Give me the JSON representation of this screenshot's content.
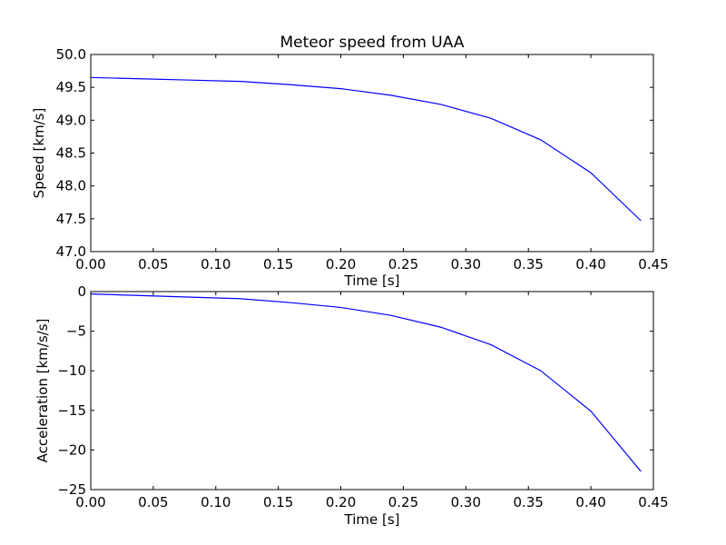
{
  "chart_data": [
    {
      "type": "line",
      "title": "Meteor speed from UAA",
      "xlabel": "Time [s]",
      "ylabel": "Speed [km/s]",
      "xlim": [
        0.0,
        0.45
      ],
      "ylim": [
        47.0,
        50.0
      ],
      "xticks": [
        0.0,
        0.05,
        0.1,
        0.15,
        0.2,
        0.25,
        0.3,
        0.35,
        0.4,
        0.45
      ],
      "xtick_labels": [
        "0.00",
        "0.05",
        "0.10",
        "0.15",
        "0.20",
        "0.25",
        "0.30",
        "0.35",
        "0.40",
        "0.45"
      ],
      "yticks": [
        47.0,
        47.5,
        48.0,
        48.5,
        49.0,
        49.5,
        50.0
      ],
      "ytick_labels": [
        "47.0",
        "47.5",
        "48.0",
        "48.5",
        "49.0",
        "49.5",
        "50.0"
      ],
      "grid": false,
      "color": "#0000ff",
      "series": [
        {
          "x": [
            0.0,
            0.04,
            0.08,
            0.12,
            0.16,
            0.2,
            0.24,
            0.28,
            0.32,
            0.36,
            0.4,
            0.44
          ],
          "y": [
            49.65,
            49.63,
            49.61,
            49.59,
            49.54,
            49.48,
            49.38,
            49.24,
            49.03,
            48.7,
            48.2,
            47.47
          ]
        }
      ]
    },
    {
      "type": "line",
      "title": "",
      "xlabel": "Time [s]",
      "ylabel": "Acceleration [km/s/s]",
      "xlim": [
        0.0,
        0.45
      ],
      "ylim": [
        -25,
        0
      ],
      "xticks": [
        0.0,
        0.05,
        0.1,
        0.15,
        0.2,
        0.25,
        0.3,
        0.35,
        0.4,
        0.45
      ],
      "xtick_labels": [
        "0.00",
        "0.05",
        "0.10",
        "0.15",
        "0.20",
        "0.25",
        "0.30",
        "0.35",
        "0.40",
        "0.45"
      ],
      "yticks": [
        -25,
        -20,
        -15,
        -10,
        -5,
        0
      ],
      "ytick_labels": [
        "−25",
        "−20",
        "−15",
        "−10",
        "−5",
        "0"
      ],
      "grid": false,
      "color": "#0000ff",
      "series": [
        {
          "x": [
            0.0,
            0.04,
            0.08,
            0.12,
            0.16,
            0.2,
            0.24,
            0.28,
            0.32,
            0.36,
            0.4,
            0.44
          ],
          "y": [
            -0.3,
            -0.5,
            -0.7,
            -0.9,
            -1.4,
            -2.0,
            -3.0,
            -4.5,
            -6.7,
            -10.0,
            -15.1,
            -22.7
          ]
        }
      ]
    }
  ]
}
